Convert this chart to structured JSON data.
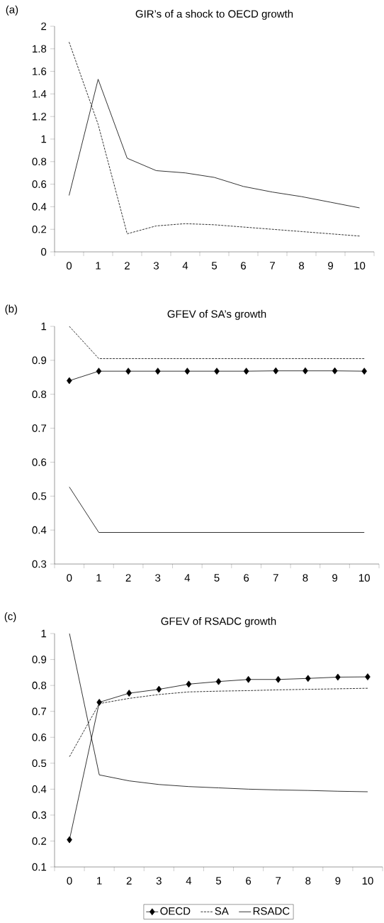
{
  "chart_data": [
    {
      "type": "line",
      "title": "GIR’s of a shock to OECD growth",
      "annotations": [
        "(a)"
      ],
      "categories": [
        "0",
        "1",
        "2",
        "3",
        "4",
        "5",
        "6",
        "7",
        "8",
        "9",
        "10"
      ],
      "ylim": [
        0,
        2
      ],
      "yticks": [
        0,
        0.2,
        0.4,
        0.6,
        0.8,
        1,
        1.2,
        1.4,
        1.6,
        1.8,
        2
      ],
      "series": [
        {
          "color": "#000000",
          "line_style": "dashed",
          "marker": "none",
          "values": [
            1.86,
            1.13,
            0.16,
            0.23,
            0.25,
            0.24,
            0.22,
            0.2,
            0.18,
            0.16,
            0.14
          ]
        },
        {
          "color": "#000000",
          "line_style": "solid",
          "marker": "none",
          "values": [
            0.5,
            1.53,
            0.83,
            0.72,
            0.7,
            0.66,
            0.58,
            0.53,
            0.49,
            0.44,
            0.39
          ]
        }
      ]
    },
    {
      "type": "line",
      "title": "GFEV of SA’s growth",
      "annotations": [
        "(b)"
      ],
      "categories": [
        "0",
        "1",
        "2",
        "3",
        "4",
        "5",
        "6",
        "7",
        "8",
        "9",
        "10"
      ],
      "ylim": [
        0.3,
        1
      ],
      "yticks": [
        0.3,
        0.4,
        0.5,
        0.6,
        0.7,
        0.8,
        0.9,
        1
      ],
      "series": [
        {
          "color": "#000000",
          "line_style": "solid",
          "marker": "diamond",
          "values": [
            0.84,
            0.868,
            0.868,
            0.868,
            0.868,
            0.868,
            0.868,
            0.869,
            0.869,
            0.869,
            0.868
          ]
        },
        {
          "color": "#000000",
          "line_style": "dashed",
          "marker": "none",
          "values": [
            1.0,
            0.905,
            0.905,
            0.905,
            0.905,
            0.905,
            0.905,
            0.905,
            0.905,
            0.905,
            0.905
          ]
        },
        {
          "color": "#000000",
          "line_style": "solid",
          "marker": "none",
          "values": [
            0.527,
            0.393,
            0.393,
            0.393,
            0.393,
            0.393,
            0.393,
            0.393,
            0.393,
            0.393,
            0.393
          ]
        }
      ]
    },
    {
      "type": "line",
      "title": "GFEV of RSADC growth",
      "annotations": [
        "(c)"
      ],
      "categories": [
        "0",
        "1",
        "2",
        "3",
        "4",
        "5",
        "6",
        "7",
        "8",
        "9",
        "10"
      ],
      "ylim": [
        0.1,
        1
      ],
      "yticks": [
        0.1,
        0.2,
        0.3,
        0.4,
        0.5,
        0.6,
        0.7,
        0.8,
        0.9,
        1
      ],
      "legend": "bottom",
      "series": [
        {
          "name": "OECD",
          "color": "#000000",
          "line_style": "solid",
          "marker": "diamond",
          "values": [
            0.205,
            0.735,
            0.77,
            0.785,
            0.805,
            0.815,
            0.823,
            0.823,
            0.827,
            0.832,
            0.833
          ]
        },
        {
          "name": "SA",
          "color": "#000000",
          "line_style": "dashed",
          "marker": "none",
          "values": [
            0.525,
            0.73,
            0.75,
            0.765,
            0.775,
            0.778,
            0.78,
            0.783,
            0.785,
            0.787,
            0.789
          ]
        },
        {
          "name": "RSADC",
          "color": "#000000",
          "line_style": "solid",
          "marker": "none",
          "values": [
            1.0,
            0.455,
            0.432,
            0.418,
            0.41,
            0.405,
            0.4,
            0.397,
            0.395,
            0.392,
            0.39
          ]
        }
      ]
    }
  ]
}
